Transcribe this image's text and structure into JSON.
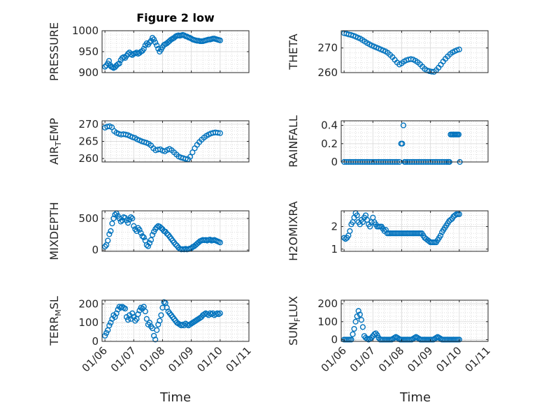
{
  "figure_title": "Figure 2 low",
  "x_axis_label": "Time",
  "x_ticks": [
    "01/06",
    "01/07",
    "01/08",
    "01/09",
    "01/10",
    "01/11"
  ],
  "marker_color": "#0072BD",
  "chart_data": [
    {
      "type": "scatter",
      "title": "Figure 2 low",
      "ylabel": "PRESSURE",
      "ylim": [
        900,
        1000
      ],
      "yticks": [
        900,
        950,
        1000
      ],
      "x": [
        0.0,
        0.05,
        0.1,
        0.14,
        0.18,
        0.22,
        0.26,
        0.3,
        0.35,
        0.4,
        0.45,
        0.5,
        0.55,
        0.6,
        0.65,
        0.7,
        0.75,
        0.8,
        0.85,
        0.9,
        0.95,
        1.0,
        1.05,
        1.1,
        1.15,
        1.2,
        1.25,
        1.3,
        1.35,
        1.4,
        1.45,
        1.5,
        1.55,
        1.6,
        1.65,
        1.7,
        1.75,
        1.8,
        1.85,
        1.9,
        1.95,
        2.0,
        2.05,
        2.1,
        2.15,
        2.2,
        2.25,
        2.3,
        2.35,
        2.4,
        2.45,
        2.5,
        2.55,
        2.6,
        2.65,
        2.7,
        2.75,
        2.8,
        2.85,
        2.9,
        2.95,
        3.0,
        3.05,
        3.1,
        3.15,
        3.2,
        3.25,
        3.3,
        3.35,
        3.4,
        3.45,
        3.5,
        3.55,
        3.6,
        3.65,
        3.7,
        3.75,
        3.8,
        3.85,
        3.9,
        3.95,
        4.0
      ],
      "y": [
        914,
        917,
        922,
        928,
        918,
        914,
        913,
        911,
        913,
        917,
        920,
        922,
        930,
        935,
        937,
        935,
        940,
        945,
        948,
        944,
        942,
        945,
        946,
        948,
        945,
        947,
        950,
        952,
        957,
        965,
        970,
        967,
        972,
        976,
        983,
        979,
        972,
        965,
        957,
        950,
        955,
        961,
        966,
        968,
        970,
        973,
        976,
        979,
        981,
        983,
        986,
        988,
        989,
        988,
        989,
        990,
        989,
        987,
        986,
        984,
        983,
        981,
        979,
        978,
        977,
        976,
        976,
        975,
        975,
        975,
        976,
        977,
        978,
        979,
        979,
        980,
        981,
        981,
        980,
        979,
        978,
        977
      ]
    },
    {
      "type": "scatter",
      "ylabel": "THETA",
      "ylim": [
        260,
        277
      ],
      "yticks": [
        260,
        270
      ],
      "x": [
        0.0,
        0.08,
        0.16,
        0.24,
        0.32,
        0.4,
        0.48,
        0.56,
        0.64,
        0.72,
        0.8,
        0.88,
        0.96,
        1.04,
        1.12,
        1.2,
        1.28,
        1.36,
        1.44,
        1.52,
        1.6,
        1.68,
        1.76,
        1.84,
        1.92,
        2.0,
        2.08,
        2.16,
        2.24,
        2.32,
        2.4,
        2.48,
        2.56,
        2.64,
        2.72,
        2.8,
        2.88,
        2.96,
        3.04,
        3.12,
        3.2,
        3.28,
        3.36,
        3.44,
        3.52,
        3.6,
        3.68,
        3.76,
        3.84,
        3.92,
        4.0
      ],
      "y": [
        276,
        275.8,
        275.5,
        275.3,
        275,
        274.6,
        274.2,
        273.8,
        273.2,
        272.6,
        272,
        271.5,
        271,
        270.6,
        270.2,
        269.8,
        269.4,
        269,
        268.6,
        268,
        267.2,
        266.3,
        265.2,
        264.1,
        263.3,
        263.8,
        264.5,
        265,
        265.3,
        265.5,
        265.3,
        264.8,
        264.2,
        263.4,
        262.4,
        261.5,
        260.9,
        260.6,
        260.4,
        260.3,
        261,
        262,
        263.2,
        264.5,
        265.6,
        266.6,
        267.5,
        268.2,
        268.7,
        269.1,
        269.4
      ]
    },
    {
      "type": "scatter",
      "ylabel": "AIR_TEMP",
      "ylim": [
        259,
        271
      ],
      "yticks": [
        260,
        265,
        270
      ],
      "x": [
        0.0,
        0.08,
        0.16,
        0.24,
        0.32,
        0.4,
        0.48,
        0.56,
        0.64,
        0.72,
        0.8,
        0.88,
        0.96,
        1.04,
        1.12,
        1.2,
        1.28,
        1.36,
        1.44,
        1.52,
        1.6,
        1.68,
        1.76,
        1.84,
        1.92,
        2.0,
        2.08,
        2.16,
        2.24,
        2.32,
        2.4,
        2.48,
        2.56,
        2.64,
        2.72,
        2.8,
        2.88,
        2.96,
        3.04,
        3.12,
        3.2,
        3.28,
        3.36,
        3.44,
        3.52,
        3.6,
        3.68,
        3.76,
        3.84,
        3.92,
        4.0
      ],
      "y": [
        269,
        269.3,
        269.4,
        269.1,
        268,
        267.5,
        267.2,
        267,
        267.1,
        267,
        266.8,
        266.5,
        266.2,
        266,
        265.6,
        265.3,
        265,
        264.8,
        264.6,
        264.3,
        263.8,
        263,
        262.4,
        262.6,
        262.7,
        262.3,
        262.1,
        262.5,
        262.8,
        262.4,
        261.8,
        261.2,
        260.6,
        260.3,
        260.1,
        259.9,
        259.8,
        260.5,
        261.8,
        263,
        264,
        264.8,
        265.5,
        266.1,
        266.6,
        267,
        267.3,
        267.5,
        267.6,
        267.5,
        267.4
      ]
    },
    {
      "type": "scatter",
      "ylabel": "RAINFALL",
      "ylim": [
        0,
        0.45
      ],
      "yticks": [
        0,
        0.2,
        0.4
      ],
      "x": [
        0.0,
        0.08,
        0.16,
        0.24,
        0.32,
        0.4,
        0.48,
        0.56,
        0.64,
        0.72,
        0.8,
        0.88,
        0.96,
        1.04,
        1.12,
        1.2,
        1.28,
        1.36,
        1.44,
        1.52,
        1.6,
        1.68,
        1.76,
        1.84,
        1.92,
        1.98,
        2.02,
        2.06,
        2.1,
        2.14,
        2.2,
        2.28,
        2.36,
        2.44,
        2.52,
        2.6,
        2.68,
        2.76,
        2.84,
        2.92,
        3.0,
        3.08,
        3.16,
        3.24,
        3.32,
        3.4,
        3.48,
        3.56,
        3.62,
        3.66,
        3.7,
        3.74,
        3.78,
        3.82,
        3.86,
        3.9,
        3.94,
        3.98,
        4.02
      ],
      "y": [
        0,
        0,
        0,
        0,
        0,
        0,
        0,
        0,
        0,
        0,
        0,
        0,
        0,
        0,
        0,
        0,
        0,
        0,
        0,
        0,
        0,
        0,
        0,
        0,
        0,
        0.2,
        0.2,
        0.4,
        0,
        0,
        0,
        0,
        0,
        0,
        0,
        0,
        0,
        0,
        0,
        0,
        0,
        0,
        0,
        0,
        0,
        0,
        0,
        0,
        0,
        0,
        0.3,
        0.3,
        0.3,
        0.3,
        0.3,
        0.3,
        0.3,
        0.3,
        0
      ]
    },
    {
      "type": "scatter",
      "ylabel": "MIXDEPTH",
      "ylim": [
        -20,
        620
      ],
      "yticks": [
        0,
        500
      ],
      "x": [
        0.0,
        0.05,
        0.1,
        0.15,
        0.2,
        0.25,
        0.3,
        0.35,
        0.4,
        0.45,
        0.5,
        0.55,
        0.6,
        0.65,
        0.7,
        0.75,
        0.8,
        0.85,
        0.9,
        0.95,
        1.0,
        1.05,
        1.1,
        1.15,
        1.2,
        1.25,
        1.3,
        1.35,
        1.4,
        1.45,
        1.5,
        1.55,
        1.6,
        1.65,
        1.7,
        1.75,
        1.8,
        1.85,
        1.9,
        1.95,
        2.0,
        2.05,
        2.1,
        2.15,
        2.2,
        2.25,
        2.3,
        2.35,
        2.4,
        2.45,
        2.5,
        2.55,
        2.6,
        2.65,
        2.7,
        2.75,
        2.8,
        2.85,
        2.9,
        2.95,
        3.0,
        3.05,
        3.1,
        3.15,
        3.2,
        3.25,
        3.3,
        3.35,
        3.4,
        3.45,
        3.5,
        3.55,
        3.6,
        3.65,
        3.7,
        3.75,
        3.8,
        3.85,
        3.9,
        3.95,
        4.0
      ],
      "y": [
        55,
        80,
        150,
        250,
        300,
        420,
        500,
        560,
        580,
        540,
        500,
        450,
        470,
        520,
        510,
        470,
        430,
        480,
        520,
        500,
        380,
        330,
        300,
        350,
        320,
        270,
        220,
        200,
        150,
        80,
        60,
        110,
        160,
        240,
        290,
        330,
        360,
        380,
        370,
        350,
        330,
        300,
        290,
        260,
        240,
        210,
        180,
        150,
        120,
        90,
        70,
        40,
        20,
        10,
        15,
        10,
        20,
        10,
        15,
        25,
        30,
        50,
        60,
        80,
        100,
        120,
        140,
        150,
        160,
        155,
        160,
        150,
        160,
        165,
        150,
        155,
        160,
        150,
        140,
        130,
        120
      ]
    },
    {
      "type": "scatter",
      "ylabel": "H2OMIXRA",
      "ylim": [
        0.9,
        2.7
      ],
      "yticks": [
        1,
        2
      ],
      "x": [
        0.0,
        0.05,
        0.1,
        0.15,
        0.2,
        0.25,
        0.3,
        0.35,
        0.4,
        0.45,
        0.5,
        0.55,
        0.6,
        0.65,
        0.7,
        0.75,
        0.8,
        0.85,
        0.9,
        0.95,
        1.0,
        1.05,
        1.1,
        1.15,
        1.2,
        1.25,
        1.3,
        1.35,
        1.4,
        1.45,
        1.5,
        1.55,
        1.6,
        1.65,
        1.7,
        1.75,
        1.8,
        1.85,
        1.9,
        1.95,
        2.0,
        2.05,
        2.1,
        2.15,
        2.2,
        2.25,
        2.3,
        2.35,
        2.4,
        2.45,
        2.5,
        2.55,
        2.6,
        2.65,
        2.7,
        2.75,
        2.8,
        2.85,
        2.9,
        2.95,
        3.0,
        3.05,
        3.1,
        3.15,
        3.2,
        3.25,
        3.3,
        3.35,
        3.4,
        3.45,
        3.5,
        3.55,
        3.6,
        3.65,
        3.7,
        3.75,
        3.8,
        3.85,
        3.9,
        3.95,
        4.0
      ],
      "y": [
        1.5,
        1.45,
        1.5,
        1.6,
        1.8,
        2.1,
        2.2,
        2.4,
        2.6,
        2.5,
        2.2,
        2.1,
        2.3,
        2.2,
        2.4,
        2.5,
        2.3,
        2.1,
        2.0,
        2.2,
        2.4,
        2.2,
        2.1,
        2.0,
        2.0,
        2.0,
        2.0,
        1.9,
        1.8,
        1.85,
        1.7,
        1.7,
        1.7,
        1.7,
        1.7,
        1.7,
        1.7,
        1.7,
        1.7,
        1.7,
        1.7,
        1.7,
        1.7,
        1.7,
        1.7,
        1.7,
        1.7,
        1.7,
        1.7,
        1.7,
        1.7,
        1.7,
        1.7,
        1.7,
        1.7,
        1.6,
        1.5,
        1.45,
        1.4,
        1.35,
        1.3,
        1.3,
        1.3,
        1.3,
        1.3,
        1.4,
        1.5,
        1.6,
        1.75,
        1.85,
        1.95,
        2.05,
        2.15,
        2.25,
        2.3,
        2.35,
        2.45,
        2.5,
        2.55,
        2.55,
        2.55
      ]
    },
    {
      "type": "scatter",
      "ylabel": "TERR_MSL",
      "ylim": [
        0,
        220
      ],
      "yticks": [
        0,
        100,
        200
      ],
      "x": [
        0.0,
        0.05,
        0.1,
        0.15,
        0.2,
        0.25,
        0.3,
        0.35,
        0.4,
        0.45,
        0.5,
        0.55,
        0.6,
        0.65,
        0.7,
        0.75,
        0.8,
        0.85,
        0.9,
        0.95,
        1.0,
        1.05,
        1.1,
        1.15,
        1.2,
        1.25,
        1.3,
        1.35,
        1.4,
        1.45,
        1.5,
        1.55,
        1.6,
        1.65,
        1.7,
        1.75,
        1.8,
        1.85,
        1.9,
        1.95,
        2.0,
        2.05,
        2.1,
        2.15,
        2.2,
        2.25,
        2.3,
        2.35,
        2.4,
        2.45,
        2.5,
        2.55,
        2.6,
        2.65,
        2.7,
        2.75,
        2.8,
        2.85,
        2.9,
        2.95,
        3.0,
        3.05,
        3.1,
        3.15,
        3.2,
        3.25,
        3.3,
        3.35,
        3.4,
        3.45,
        3.5,
        3.55,
        3.6,
        3.65,
        3.7,
        3.75,
        3.8,
        3.85,
        3.9,
        3.95,
        4.0
      ],
      "y": [
        30,
        45,
        60,
        85,
        100,
        120,
        140,
        130,
        150,
        170,
        185,
        180,
        185,
        180,
        175,
        130,
        115,
        140,
        120,
        150,
        130,
        110,
        120,
        145,
        165,
        180,
        175,
        185,
        160,
        120,
        90,
        100,
        80,
        70,
        30,
        10,
        60,
        90,
        110,
        140,
        180,
        210,
        205,
        180,
        160,
        150,
        140,
        130,
        120,
        110,
        100,
        95,
        90,
        85,
        90,
        85,
        95,
        90,
        85,
        90,
        95,
        100,
        105,
        110,
        115,
        120,
        125,
        130,
        140,
        145,
        150,
        145,
        140,
        150,
        145,
        150,
        140,
        145,
        150,
        145,
        150
      ]
    },
    {
      "type": "scatter",
      "ylabel": "SUN_FLUX",
      "ylim": [
        -10,
        220
      ],
      "yticks": [
        0,
        100,
        200
      ],
      "x": [
        0.0,
        0.05,
        0.1,
        0.15,
        0.2,
        0.25,
        0.3,
        0.35,
        0.4,
        0.45,
        0.5,
        0.55,
        0.6,
        0.65,
        0.7,
        0.75,
        0.8,
        0.85,
        0.9,
        0.95,
        1.0,
        1.05,
        1.1,
        1.15,
        1.2,
        1.25,
        1.3,
        1.35,
        1.4,
        1.45,
        1.5,
        1.55,
        1.6,
        1.65,
        1.7,
        1.75,
        1.8,
        1.85,
        1.9,
        1.95,
        2.0,
        2.05,
        2.1,
        2.15,
        2.2,
        2.25,
        2.3,
        2.35,
        2.4,
        2.45,
        2.5,
        2.55,
        2.6,
        2.65,
        2.7,
        2.75,
        2.8,
        2.85,
        2.9,
        2.95,
        3.0,
        3.05,
        3.1,
        3.15,
        3.2,
        3.25,
        3.3,
        3.35,
        3.4,
        3.45,
        3.5,
        3.55,
        3.6,
        3.65,
        3.7,
        3.75,
        3.8,
        3.85,
        3.9,
        3.95,
        4.0
      ],
      "y": [
        0,
        0,
        0,
        0,
        0,
        0,
        30,
        60,
        100,
        130,
        160,
        140,
        110,
        70,
        20,
        10,
        5,
        0,
        5,
        10,
        20,
        30,
        35,
        25,
        10,
        0,
        0,
        0,
        0,
        0,
        0,
        0,
        0,
        0,
        5,
        10,
        15,
        10,
        5,
        0,
        0,
        0,
        0,
        0,
        0,
        0,
        0,
        0,
        5,
        10,
        15,
        10,
        5,
        0,
        0,
        0,
        0,
        0,
        0,
        0,
        0,
        0,
        0,
        5,
        10,
        15,
        10,
        5,
        0,
        0,
        0,
        0,
        0,
        0,
        0,
        0,
        0,
        0,
        0,
        0,
        0
      ]
    }
  ]
}
